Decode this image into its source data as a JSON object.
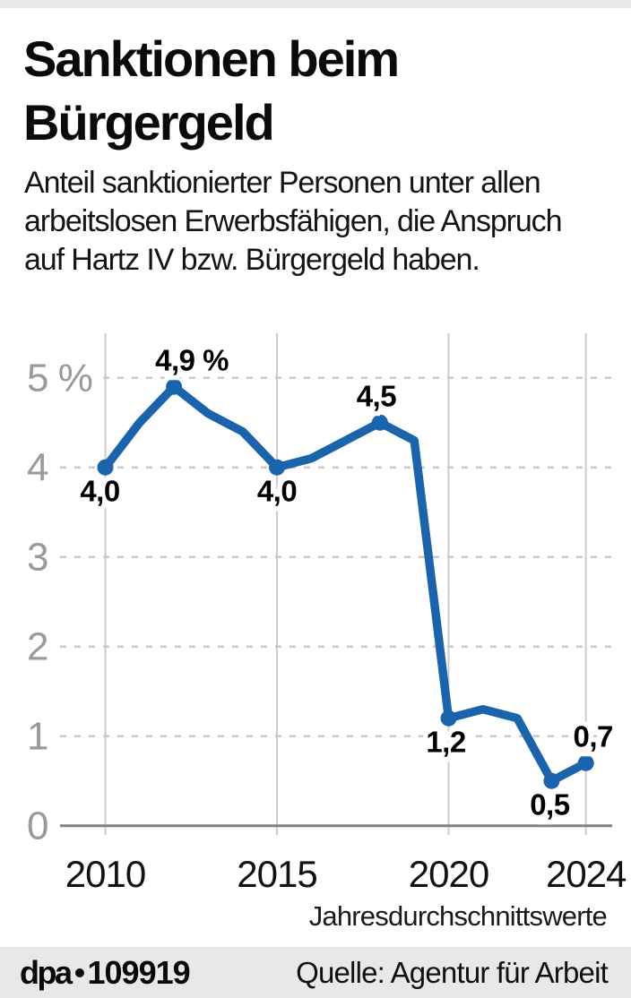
{
  "header": {
    "title_lines": [
      "Sanktionen beim",
      "Bürgergeld"
    ],
    "subtitle_lines": [
      "Anteil sanktionierter Personen unter allen",
      "arbeitslosen Erwerbsfähigen, die Anspruch",
      "auf Hartz IV bzw. Bürgergeld haben."
    ]
  },
  "chart_data": {
    "type": "line",
    "title": "Sanktionen beim Bürgergeld",
    "unit": "%",
    "x": [
      2010,
      2011,
      2012,
      2013,
      2014,
      2015,
      2016,
      2017,
      2018,
      2019,
      2020,
      2021,
      2022,
      2023,
      2024
    ],
    "values": [
      4.0,
      4.5,
      4.9,
      4.6,
      4.4,
      4.0,
      4.1,
      4.3,
      4.5,
      4.3,
      1.2,
      1.3,
      1.2,
      0.5,
      0.7
    ],
    "labeled_points": [
      {
        "year": 2010,
        "label": "4,0",
        "pos": "below",
        "dx": -6
      },
      {
        "year": 2012,
        "label": "4,9 %",
        "pos": "above",
        "dx": 20
      },
      {
        "year": 2015,
        "label": "4,0",
        "pos": "below",
        "dx": 0
      },
      {
        "year": 2018,
        "label": "4,5",
        "pos": "above",
        "dx": -4
      },
      {
        "year": 2020,
        "label": "1,2",
        "pos": "below",
        "dx": -3
      },
      {
        "year": 2023,
        "label": "0,5",
        "pos": "below",
        "dx": -2
      },
      {
        "year": 2024,
        "label": "0,7",
        "pos": "above",
        "dx": 8
      }
    ],
    "x_ticks": [
      {
        "year": 2010,
        "label": "2010"
      },
      {
        "year": 2015,
        "label": "2015"
      },
      {
        "year": 2020,
        "label": "2020"
      },
      {
        "year": 2024,
        "label": "2024"
      }
    ],
    "y_ticks": [
      {
        "value": 5,
        "label": "5 %"
      },
      {
        "value": 4,
        "label": "4"
      },
      {
        "value": 3,
        "label": "3"
      },
      {
        "value": 2,
        "label": "2"
      },
      {
        "value": 1,
        "label": "1"
      },
      {
        "value": 0,
        "label": "0"
      }
    ],
    "ylim": [
      0,
      5.5
    ],
    "xlabel": "",
    "ylabel": "",
    "grid": "horizontal dashed lines at 1-5, solid vertical lines at labeled years, solid zero axis",
    "legend": "none",
    "note": "Jahresdurchschnittswerte",
    "line_color": "#1a64ad"
  },
  "footer": {
    "agency": "dpa",
    "graphic_id": "109919",
    "source": "Quelle: Agentur für Arbeit"
  },
  "colors": {
    "accent_blue": "#1a64ad",
    "grid_gray": "#cccccc",
    "grid_dash_gray": "#c9c9c9",
    "axis_gray": "#808080",
    "tick_label_gray": "#9a9a9a",
    "band_gray": "#e8e8e8",
    "text_black": "#0a0a0a"
  }
}
